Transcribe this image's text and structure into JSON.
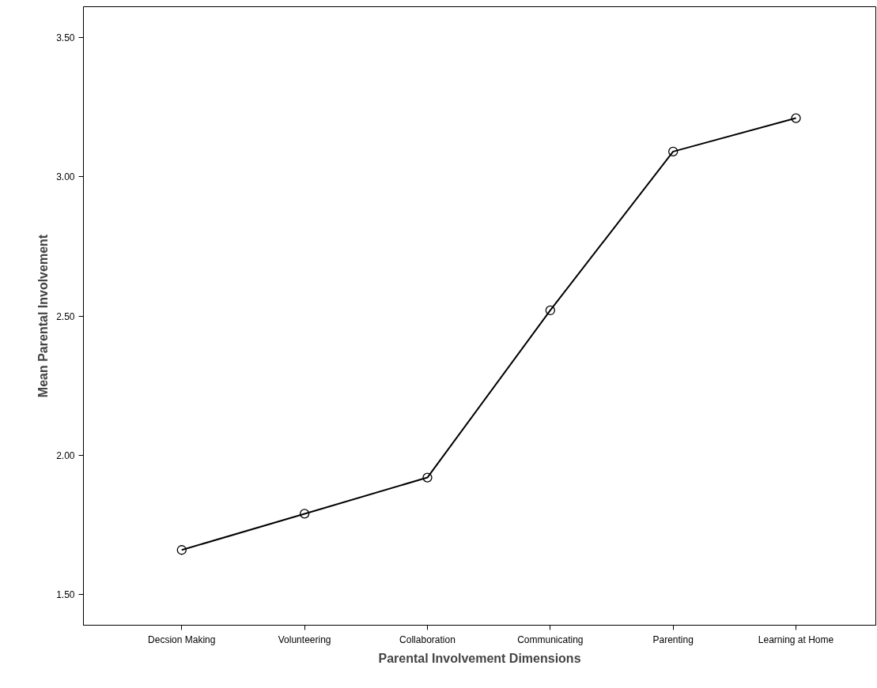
{
  "chart_data": {
    "type": "line",
    "xlabel": "Parental Involvement Dimensions",
    "ylabel": "Mean Parental Involvement",
    "categories": [
      "Decsion Making",
      "Volunteering",
      "Collaboration",
      "Communicating",
      "Parenting",
      "Learning at Home"
    ],
    "series": [
      {
        "color": "#000000",
        "values": [
          1.66,
          1.79,
          1.92,
          2.52,
          3.09,
          3.21
        ]
      }
    ],
    "ylim": [
      1.39,
      3.61
    ],
    "yticks": [
      {
        "value": 1.5,
        "label": "1.50"
      },
      {
        "value": 2.0,
        "label": "2.00"
      },
      {
        "value": 2.5,
        "label": "2.50"
      },
      {
        "value": 3.0,
        "label": "3.00"
      },
      {
        "value": 3.5,
        "label": "3.50"
      }
    ],
    "grid": false,
    "marker": "circle",
    "line_style": "solid"
  }
}
